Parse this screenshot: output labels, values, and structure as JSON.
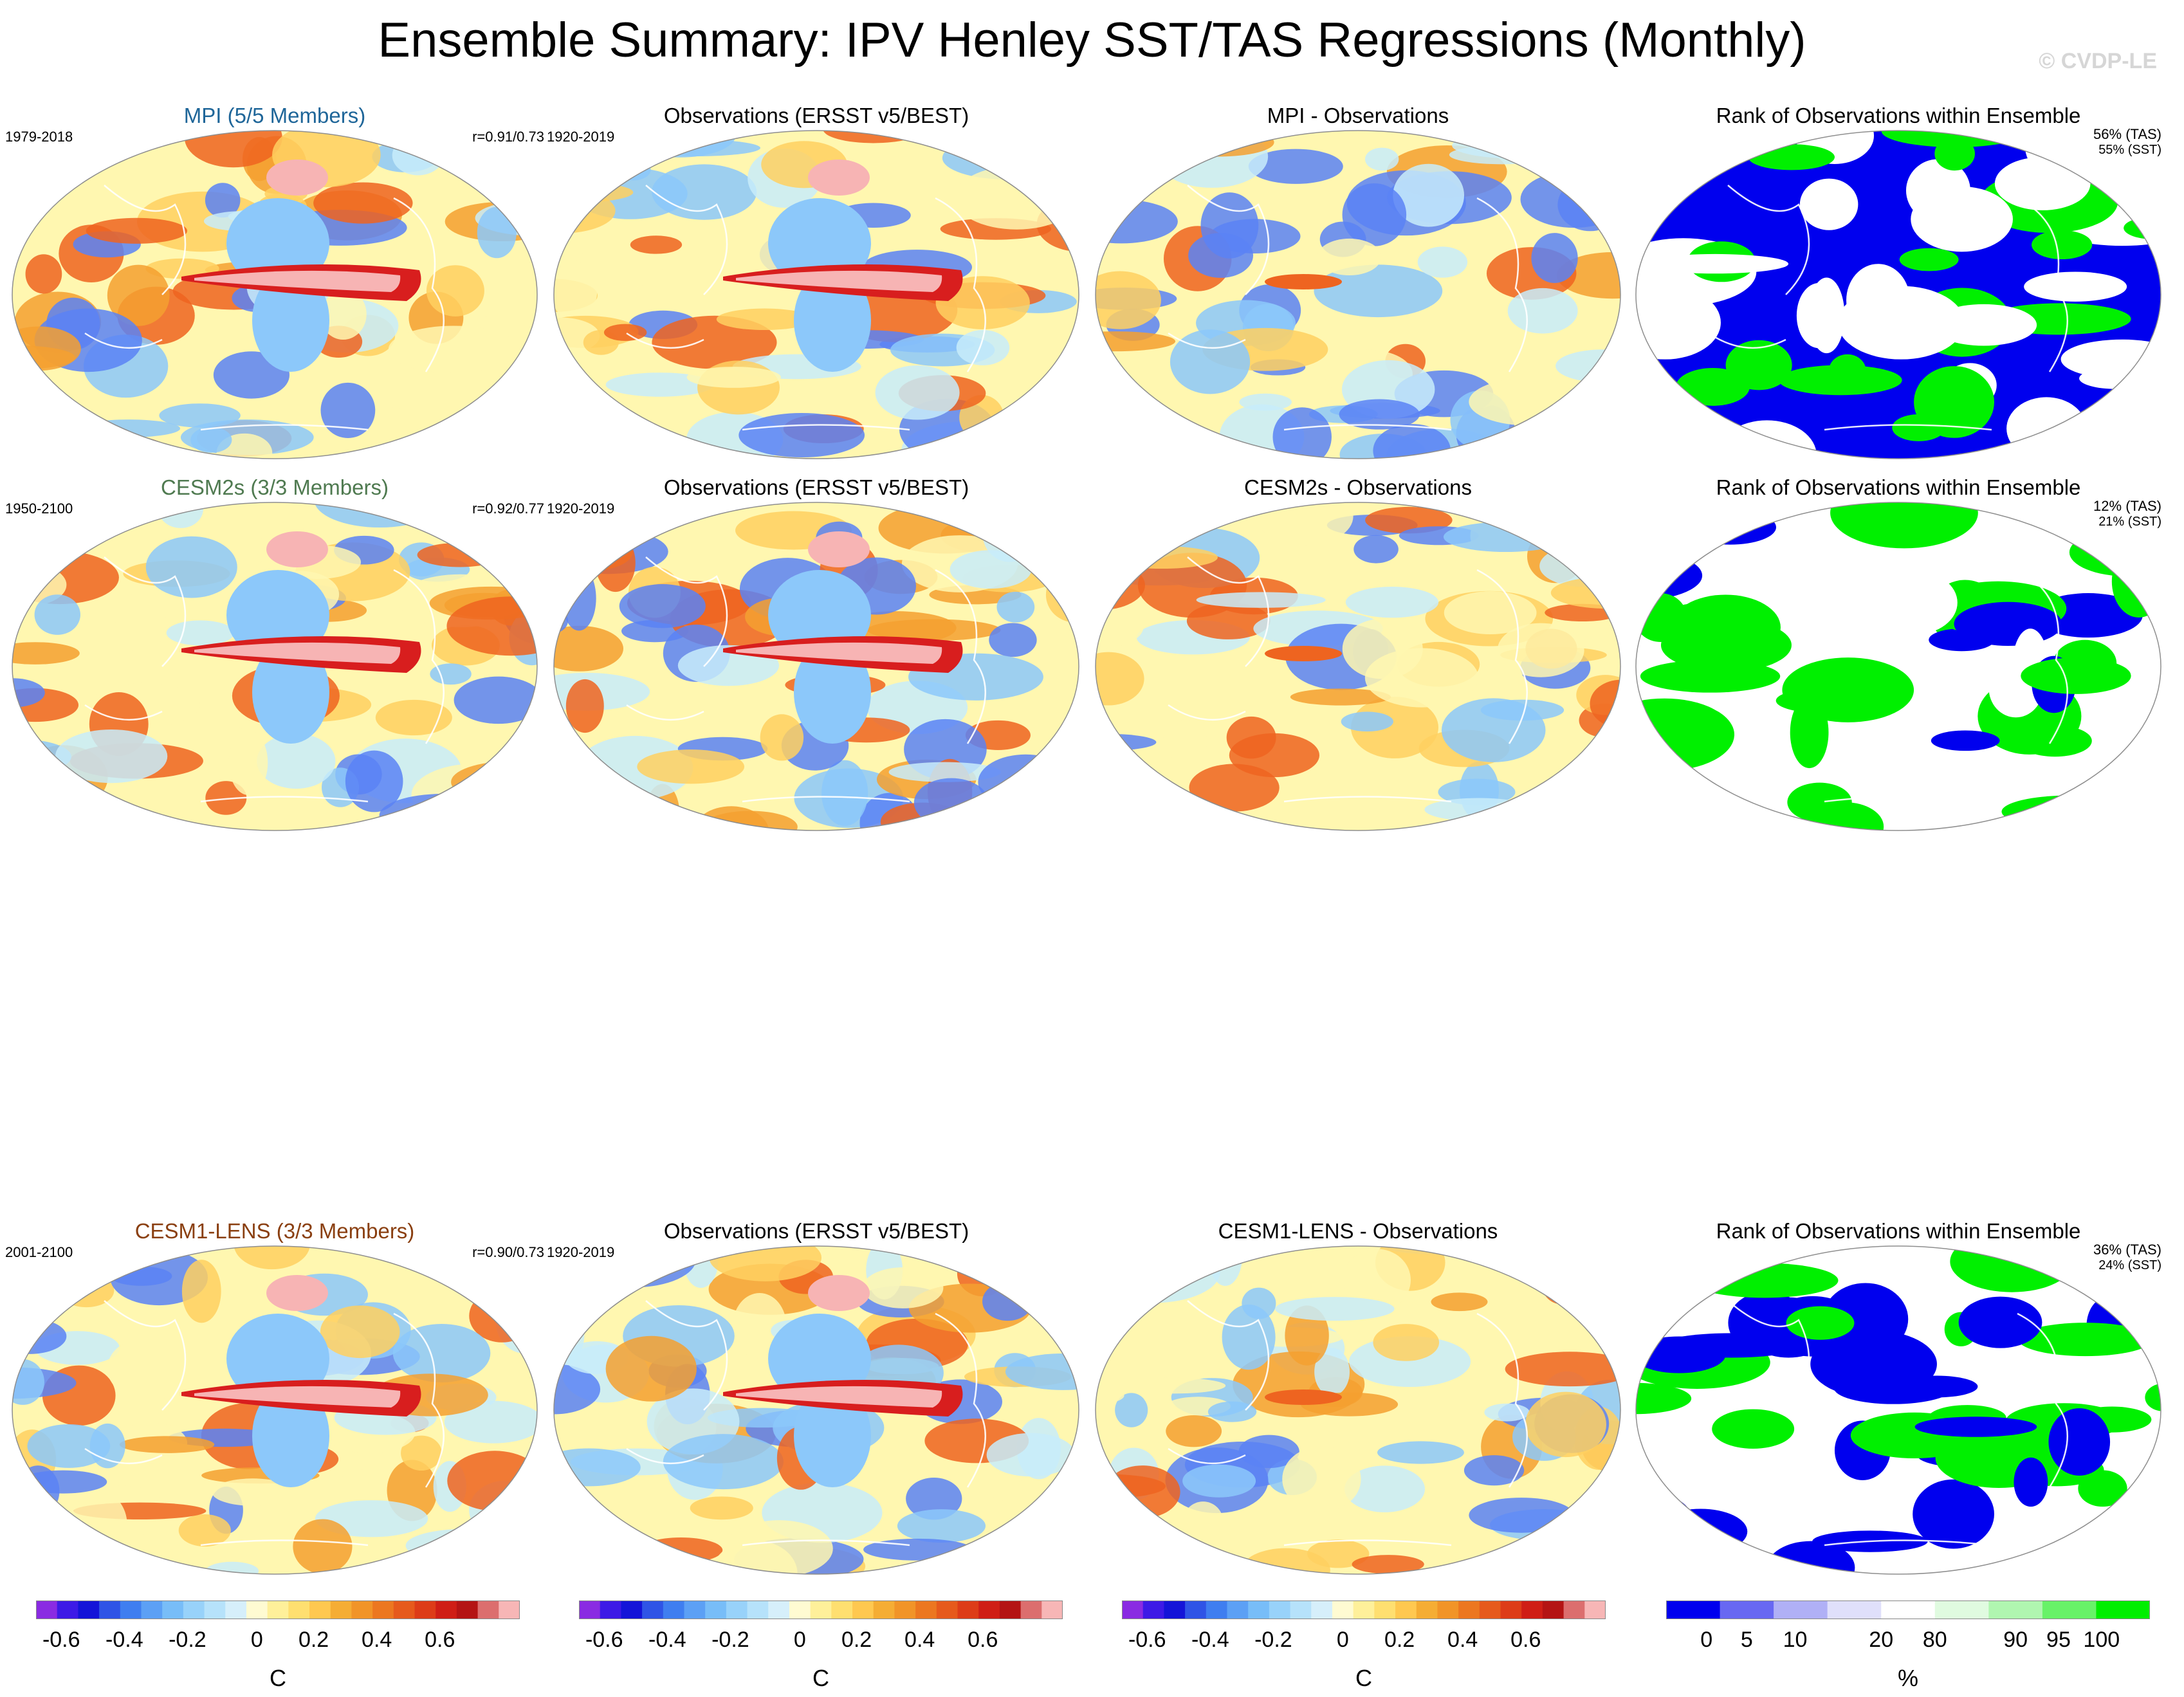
{
  "title": "Ensemble Summary: IPV Henley SST/TAS Regressions (Monthly)",
  "watermark": "© CVDP-LE",
  "colors": {
    "ocean_map": [
      "#2d2df0",
      "#5a82f5",
      "#8cc8fa",
      "#c8ecfa",
      "#fff7b0",
      "#ffd060",
      "#f5a030",
      "#ee6420",
      "#d81e1e",
      "#f7b4b4"
    ],
    "rank": {
      "low": "#0000ee",
      "mid": "#ffffff",
      "high": "#00f000"
    },
    "mpi_title": "#1f6699",
    "cesm2_title": "#4f7a50",
    "cesm1_title": "#8a3f10"
  },
  "rows": [
    {
      "model": {
        "title": "MPI (5/5 Members)",
        "years": "1979-2018",
        "corr": "r=0.91/0.73"
      },
      "obs": {
        "title": "Observations (ERSST v5/BEST)",
        "years": "1920-2019"
      },
      "diff": {
        "title": "MPI - Observations"
      },
      "rank": {
        "title": "Rank of Observations within Ensemble",
        "tas": "56% (TAS)",
        "sst": "55% (SST)"
      }
    },
    {
      "model": {
        "title": "CESM2s (3/3 Members)",
        "years": "1950-2100",
        "corr": "r=0.92/0.77"
      },
      "obs": {
        "title": "Observations (ERSST v5/BEST)",
        "years": "1920-2019"
      },
      "diff": {
        "title": "CESM2s - Observations"
      },
      "rank": {
        "title": "Rank of Observations within Ensemble",
        "tas": "12% (TAS)",
        "sst": "21% (SST)"
      }
    },
    {
      "model": {
        "title": "CESM1-LENS (3/3 Members)",
        "years": "2001-2100",
        "corr": "r=0.90/0.73"
      },
      "obs": {
        "title": "Observations (ERSST v5/BEST)",
        "years": "1920-2019"
      },
      "diff": {
        "title": "CESM1-LENS - Observations"
      },
      "rank": {
        "title": "Rank of Observations within Ensemble",
        "tas": "36% (TAS)",
        "sst": "24% (SST)"
      }
    }
  ],
  "colorbar_temp": {
    "unit": "C",
    "tick_labels": [
      "-0.6",
      "-0.4",
      "-0.2",
      "0",
      "0.2",
      "0.4",
      "0.6"
    ],
    "colors": [
      "#8a2be2",
      "#3d1ae6",
      "#1414d8",
      "#2f54e6",
      "#3f7ef0",
      "#5ca0f5",
      "#78bdf8",
      "#98d2fa",
      "#b6e2fb",
      "#d6effb",
      "#fffbd2",
      "#fff09a",
      "#ffdf70",
      "#ffc850",
      "#f5ad34",
      "#f19428",
      "#ec7720",
      "#e65a1c",
      "#dd3c18",
      "#cf1e16",
      "#b41414",
      "#dc6e6e",
      "#f7b6b6"
    ]
  },
  "colorbar_rank": {
    "unit": "%",
    "tick_labels": [
      "0",
      "5",
      "10",
      "20",
      "80",
      "90",
      "95",
      "100"
    ],
    "colors": [
      "#0000ee",
      "#6868f2",
      "#b0b0f6",
      "#e0e0fb",
      "#ffffff",
      "#e0fbe0",
      "#b0f6b0",
      "#68f268",
      "#00ee00"
    ]
  }
}
